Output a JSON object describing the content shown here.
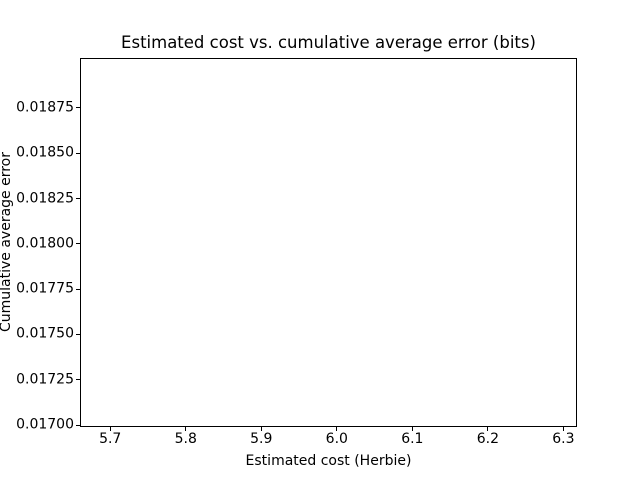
{
  "figure_background": "#ffffff",
  "chart_data": {
    "type": "scatter",
    "title": "Estimated cost vs. cumulative average error (bits)",
    "xlabel": "Estimated cost (Herbie)",
    "ylabel": "Cumulative average error",
    "x_ticks": [
      5.7,
      5.8,
      5.9,
      6.0,
      6.1,
      6.2,
      6.3
    ],
    "x_tick_labels": [
      "5.7",
      "5.8",
      "5.9",
      "6.0",
      "6.1",
      "6.2",
      "6.3"
    ],
    "y_ticks": [
      0.017,
      0.01725,
      0.0175,
      0.01775,
      0.018,
      0.01825,
      0.0185,
      0.01875
    ],
    "y_tick_labels": [
      "0.01700",
      "0.01725",
      "0.01750",
      "0.01775",
      "0.01800",
      "0.01825",
      "0.01850",
      "0.01875"
    ],
    "xlim": [
      5.66,
      6.318
    ],
    "ylim": [
      0.016989,
      0.019026
    ],
    "points": [],
    "series": [],
    "grid": false,
    "legend": null,
    "axis_color": "#000000",
    "text_color": "#000000",
    "plot_background": "#ffffff"
  }
}
